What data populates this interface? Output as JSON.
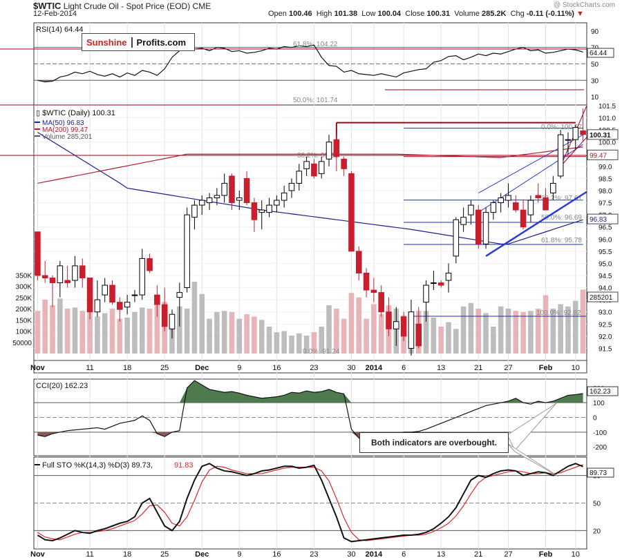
{
  "header": {
    "symbol": "$WTIC",
    "name": "Light Crude Oil - Spot Price (EOD)",
    "exchange": "CME",
    "date": "12-Feb-2014",
    "open_label": "Open",
    "open": "100.46",
    "high_label": "High",
    "high": "101.38",
    "low_label": "Low",
    "low": "100.04",
    "close_label": "Close",
    "close": "100.31",
    "volume_label": "Volume",
    "volume": "285.2K",
    "chg_label": "Chg",
    "chg": "-0.11 (-0.11%)",
    "watermark": "@ StockCharts.com"
  },
  "logo": {
    "part1": "Sunshine",
    "part2": "Profits.com"
  },
  "callout": "Both indicators are overbought.",
  "colors": {
    "up": "#000000",
    "down": "#c81e2d",
    "ma50": "#1a1f8c",
    "ma200": "#b01c2e",
    "vol_up": "#bdbdbd",
    "vol_down": "#e8b4b8",
    "trend": "#2a3bd6",
    "fib": "#1a2bb0",
    "resist": "#a00018",
    "cci_fill": "#4e7a4e",
    "cci_neg": "#8a5a55",
    "pct_d": "#e0262b"
  },
  "chart_data": [
    {
      "type": "line",
      "panel": "RSI",
      "title": "RSI(14) 64.44",
      "ticks": [
        "90",
        "70",
        "50",
        "30",
        "10"
      ],
      "last_value": "64.44",
      "ylim": [
        0,
        100
      ],
      "values": [
        30,
        28,
        29,
        34,
        36,
        40,
        38,
        41,
        37,
        35,
        38,
        34,
        39,
        36,
        42,
        40,
        36,
        44,
        58,
        66,
        70,
        68,
        69,
        66,
        70,
        69,
        65,
        66,
        63,
        64,
        66,
        69,
        68,
        71,
        70,
        72,
        71,
        73,
        58,
        48,
        47,
        40,
        42,
        38,
        37,
        36,
        38,
        36,
        34,
        39,
        41,
        43,
        44,
        52,
        54,
        59,
        60,
        55,
        58,
        62,
        60,
        63,
        62,
        65,
        68,
        70,
        66,
        67,
        63,
        64,
        66,
        68,
        67,
        64.44
      ]
    },
    {
      "type": "candlestick",
      "panel": "Price",
      "series_title": "$WTIC (Daily) 100.31",
      "legend": [
        "MA(50) 96.83",
        "MA(200) 99.47",
        "Volume 285,201"
      ],
      "ylim": [
        91.0,
        101.5
      ],
      "price_ticks": [
        "101.5",
        "101.0",
        "100.5",
        "100.0",
        "99.5",
        "99.0",
        "98.5",
        "98.0",
        "97.5",
        "97.0",
        "96.5",
        "96.0",
        "95.5",
        "95.0",
        "94.5",
        "94.0",
        "93.5",
        "93.0",
        "92.5",
        "92.0",
        "91.5"
      ],
      "volume_ticks": [
        "350K",
        "300K",
        "250K",
        "200K",
        "150K",
        "100K",
        "50000"
      ],
      "x_ticks": [
        "Nov",
        "11",
        "18",
        "25",
        "Dec",
        "9",
        "16",
        "23",
        "30",
        "2014",
        "6",
        "13",
        "21",
        "27",
        "Feb",
        "10"
      ],
      "price_labels": {
        "last": "100.31",
        "ma200": "99.47",
        "ma50": "96.83",
        "vol": "285201"
      },
      "fib_labels": [
        "61.8%: 104.22",
        "50.0%: 101.74",
        "38.2%: 99.28",
        "0.0%: 91.24",
        "0.0%: 100.57",
        "38.2%: 97.61",
        "50.0%: 96.69",
        "61.8%: 95.78",
        "100.0%: 92.82"
      ],
      "candles": [
        [
          96.3,
          96.3,
          94.3,
          94.5
        ],
        [
          94.5,
          95.1,
          94.2,
          94.4
        ],
        [
          94.4,
          94.5,
          93.2,
          94.2
        ],
        [
          94.2,
          95.1,
          93.6,
          94.9
        ],
        [
          94.3,
          94.9,
          94.0,
          94.2
        ],
        [
          94.3,
          95.3,
          94.0,
          94.9
        ],
        [
          94.9,
          95.2,
          94.0,
          94.4
        ],
        [
          94.4,
          94.4,
          92.7,
          93.0
        ],
        [
          93.0,
          94.3,
          92.8,
          93.5
        ],
        [
          93.7,
          94.4,
          93.4,
          94.1
        ],
        [
          94.1,
          94.3,
          93.3,
          93.4
        ],
        [
          93.4,
          93.6,
          92.6,
          93.1
        ],
        [
          93.2,
          93.7,
          92.9,
          93.4
        ],
        [
          93.7,
          93.9,
          93.4,
          93.7
        ],
        [
          93.7,
          95.6,
          93.5,
          95.2
        ],
        [
          95.2,
          95.4,
          94.6,
          94.7
        ],
        [
          93.7,
          94.1,
          92.8,
          93.3
        ],
        [
          93.3,
          94.0,
          92.2,
          92.4
        ],
        [
          92.3,
          93.1,
          91.9,
          92.9
        ],
        [
          93.6,
          94.2,
          92.4,
          93.8
        ],
        [
          94.0,
          97.3,
          93.8,
          97.0
        ],
        [
          96.9,
          97.6,
          96.4,
          97.4
        ],
        [
          97.4,
          97.8,
          97.0,
          97.6
        ],
        [
          97.5,
          97.9,
          97.2,
          97.7
        ],
        [
          97.7,
          98.1,
          97.4,
          97.8
        ],
        [
          97.8,
          98.7,
          97.5,
          98.3
        ],
        [
          98.6,
          98.7,
          97.2,
          97.5
        ],
        [
          97.6,
          98.0,
          97.2,
          97.7
        ],
        [
          98.5,
          98.8,
          97.4,
          97.5
        ],
        [
          97.5,
          97.7,
          96.3,
          96.8
        ],
        [
          97.1,
          97.6,
          96.4,
          97.2
        ],
        [
          97.1,
          97.7,
          96.9,
          97.4
        ],
        [
          97.4,
          97.8,
          97.1,
          97.6
        ],
        [
          97.6,
          98.2,
          97.3,
          97.9
        ],
        [
          98.0,
          98.5,
          97.7,
          98.3
        ],
        [
          98.3,
          99.1,
          98.0,
          98.8
        ],
        [
          98.9,
          99.4,
          98.6,
          99.2
        ],
        [
          99.1,
          99.3,
          98.5,
          98.6
        ],
        [
          98.7,
          99.4,
          98.5,
          99.2
        ],
        [
          99.3,
          100.3,
          99.0,
          100.0
        ],
        [
          100.1,
          100.3,
          98.8,
          99.4
        ],
        [
          99.3,
          99.4,
          98.6,
          98.9
        ],
        [
          98.7,
          98.8,
          95.5,
          95.5
        ],
        [
          95.5,
          95.7,
          94.3,
          94.6
        ],
        [
          94.6,
          94.8,
          93.6,
          93.9
        ],
        [
          93.9,
          94.4,
          93.4,
          93.8
        ],
        [
          93.8,
          94.1,
          92.8,
          93.0
        ],
        [
          93.0,
          93.6,
          92.0,
          92.3
        ],
        [
          92.3,
          93.2,
          91.6,
          92.6
        ],
        [
          92.8,
          93.0,
          91.8,
          92.0
        ],
        [
          91.5,
          93.5,
          91.2,
          93.0
        ],
        [
          92.5,
          93.2,
          91.5,
          91.6
        ],
        [
          93.4,
          94.3,
          92.6,
          94.1
        ],
        [
          94.2,
          94.7,
          93.9,
          94.2
        ],
        [
          94.2,
          94.3,
          94.0,
          94.1
        ],
        [
          94.3,
          95.0,
          93.8,
          94.6
        ],
        [
          95.3,
          96.9,
          95.0,
          96.8
        ],
        [
          96.6,
          97.3,
          96.3,
          96.9
        ],
        [
          97.0,
          97.6,
          96.6,
          97.4
        ],
        [
          97.2,
          97.4,
          95.6,
          95.8
        ],
        [
          95.8,
          97.3,
          95.6,
          97.1
        ],
        [
          97.1,
          97.6,
          96.8,
          97.5
        ],
        [
          97.5,
          97.9,
          97.1,
          97.7
        ],
        [
          97.6,
          98.3,
          97.3,
          97.8
        ],
        [
          97.5,
          97.8,
          97.1,
          97.2
        ],
        [
          97.2,
          97.6,
          96.4,
          96.5
        ],
        [
          97.0,
          97.8,
          96.7,
          97.6
        ],
        [
          97.8,
          98.3,
          97.5,
          97.7
        ],
        [
          97.7,
          98.1,
          97.2,
          97.2
        ],
        [
          97.9,
          98.6,
          97.6,
          98.3
        ],
        [
          98.6,
          100.5,
          98.5,
          100.3
        ],
        [
          100.1,
          100.4,
          99.5,
          100.1
        ],
        [
          100.1,
          100.7,
          99.7,
          100.6
        ],
        [
          100.46,
          101.38,
          100.04,
          100.31
        ]
      ],
      "volume_k": [
        190,
        240,
        215,
        245,
        200,
        205,
        190,
        195,
        165,
        180,
        200,
        155,
        160,
        185,
        205,
        200,
        215,
        230,
        165,
        210,
        200,
        320,
        265,
        155,
        185,
        190,
        185,
        155,
        175,
        165,
        150,
        120,
        95,
        100,
        80,
        90,
        80,
        95,
        120,
        215,
        200,
        155,
        270,
        250,
        155,
        220,
        175,
        215,
        200,
        170,
        175,
        190,
        190,
        160,
        120,
        140,
        110,
        210,
        225,
        200,
        180,
        120,
        210,
        200,
        190,
        185,
        190,
        200,
        260,
        200,
        220,
        210,
        235,
        285
      ]
    },
    {
      "type": "area",
      "panel": "CCI",
      "title": "CCI(20) 162.23",
      "ticks": [
        "200",
        "100",
        "0",
        "-100",
        "-200"
      ],
      "last_value": "162.23",
      "ylim": [
        -260,
        260
      ],
      "values": [
        -120,
        -130,
        -110,
        -100,
        -90,
        -85,
        -80,
        -75,
        -70,
        -80,
        -60,
        -40,
        -30,
        -20,
        10,
        -20,
        -110,
        -130,
        -100,
        -90,
        200,
        250,
        220,
        190,
        180,
        170,
        175,
        165,
        150,
        140,
        130,
        135,
        140,
        150,
        170,
        165,
        180,
        170,
        175,
        190,
        170,
        160,
        -80,
        -140,
        -160,
        -130,
        -110,
        -120,
        -115,
        -100,
        -100,
        -95,
        -80,
        -60,
        -40,
        -20,
        0,
        20,
        40,
        60,
        80,
        90,
        100,
        110,
        130,
        100,
        90,
        110,
        100,
        110,
        130,
        150,
        155,
        162.23
      ]
    },
    {
      "type": "line",
      "panel": "Full STO",
      "title": "Full STO %K(14,3) %D(3) 89.73, 91.83",
      "ticks": [
        "80",
        "50",
        "20"
      ],
      "last_value": "89.73",
      "ylim": [
        0,
        100
      ],
      "series": [
        {
          "name": "%K(14,3)",
          "values": [
            15,
            10,
            9,
            12,
            16,
            20,
            18,
            17,
            20,
            22,
            25,
            28,
            30,
            35,
            50,
            55,
            40,
            25,
            20,
            30,
            55,
            75,
            90,
            93,
            88,
            85,
            84,
            82,
            80,
            82,
            85,
            86,
            88,
            90,
            90,
            88,
            89,
            91,
            75,
            55,
            35,
            12,
            8,
            9,
            10,
            11,
            12,
            13,
            14,
            15,
            15,
            16,
            18,
            22,
            28,
            35,
            45,
            60,
            75,
            80,
            78,
            82,
            85,
            86,
            85,
            80,
            82,
            84,
            83,
            80,
            85,
            90,
            93,
            89.73
          ]
        },
        {
          "name": "%D(3)",
          "values": [
            18,
            13,
            11,
            10,
            13,
            16,
            18,
            18,
            19,
            20,
            22,
            25,
            28,
            31,
            38,
            47,
            48,
            40,
            28,
            25,
            35,
            53,
            73,
            86,
            90,
            89,
            86,
            84,
            82,
            82,
            82,
            84,
            86,
            88,
            89,
            89,
            89,
            89,
            85,
            74,
            55,
            34,
            18,
            10,
            9,
            10,
            11,
            12,
            13,
            14,
            15,
            15,
            16,
            19,
            23,
            28,
            36,
            47,
            60,
            72,
            78,
            80,
            82,
            84,
            85,
            84,
            82,
            82,
            83,
            82,
            83,
            86,
            89,
            91.83
          ]
        }
      ]
    }
  ]
}
